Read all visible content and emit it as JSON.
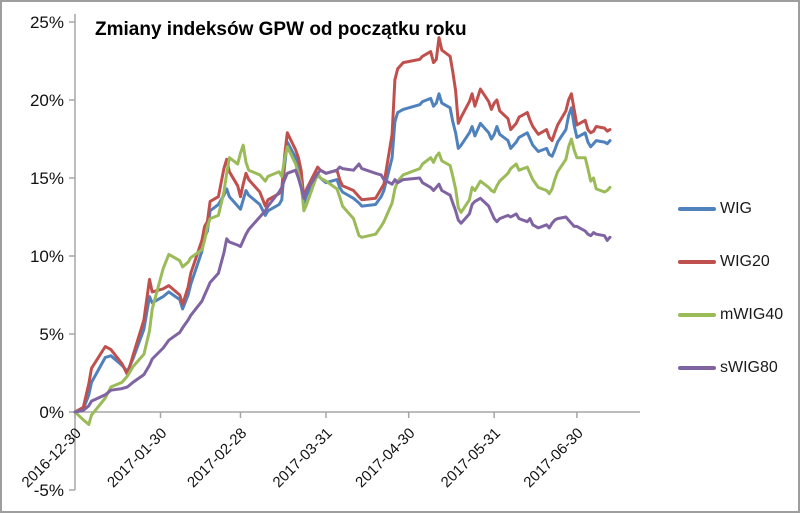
{
  "chart_data": {
    "type": "line",
    "title": "Zmiany indeksów GPW od początku roku",
    "value_unit": "%",
    "ylim": [
      -5,
      25
    ],
    "grid": false,
    "legend_position": "right",
    "axis_color": "#a6a6a6",
    "y_ticks": [
      {
        "label": "25%",
        "value": 25
      },
      {
        "label": "20%",
        "value": 20
      },
      {
        "label": "15%",
        "value": 15
      },
      {
        "label": "10%",
        "value": 10
      },
      {
        "label": "5%",
        "value": 5
      },
      {
        "label": "0%",
        "value": 0
      },
      {
        "label": "-5%",
        "value": -5
      }
    ],
    "x_tick_labels": [
      "2016-12-30",
      "2017-01-30",
      "2017-02-28",
      "2017-03-31",
      "2017-04-30",
      "2017-05-31",
      "2017-06-30"
    ],
    "x": [
      "2016-12-30",
      "2017-01-02",
      "2017-01-04",
      "2017-01-05",
      "2017-01-10",
      "2017-01-12",
      "2017-01-16",
      "2017-01-18",
      "2017-01-20",
      "2017-01-24",
      "2017-01-26",
      "2017-01-27",
      "2017-01-31",
      "2017-02-02",
      "2017-02-06",
      "2017-02-07",
      "2017-02-09",
      "2017-02-10",
      "2017-02-14",
      "2017-02-15",
      "2017-02-16",
      "2017-02-17",
      "2017-02-20",
      "2017-02-22",
      "2017-02-23",
      "2017-02-24",
      "2017-02-27",
      "2017-02-28",
      "2017-03-01",
      "2017-03-02",
      "2017-03-03",
      "2017-03-07",
      "2017-03-09",
      "2017-03-10",
      "2017-03-14",
      "2017-03-15",
      "2017-03-16",
      "2017-03-17",
      "2017-03-20",
      "2017-03-21",
      "2017-03-22",
      "2017-03-23",
      "2017-03-24",
      "2017-03-28",
      "2017-03-29",
      "2017-03-31",
      "2017-04-04",
      "2017-04-05",
      "2017-04-06",
      "2017-04-10",
      "2017-04-12",
      "2017-04-13",
      "2017-04-18",
      "2017-04-20",
      "2017-04-21",
      "2017-04-24",
      "2017-04-25",
      "2017-04-26",
      "2017-04-28",
      "2017-05-04",
      "2017-05-05",
      "2017-05-08",
      "2017-05-09",
      "2017-05-10",
      "2017-05-11",
      "2017-05-12",
      "2017-05-15",
      "2017-05-16",
      "2017-05-17",
      "2017-05-18",
      "2017-05-19",
      "2017-05-22",
      "2017-05-23",
      "2017-05-24",
      "2017-05-26",
      "2017-05-29",
      "2017-05-30",
      "2017-05-31",
      "2017-06-01",
      "2017-06-02",
      "2017-06-05",
      "2017-06-06",
      "2017-06-08",
      "2017-06-09",
      "2017-06-12",
      "2017-06-13",
      "2017-06-14",
      "2017-06-16",
      "2017-06-19",
      "2017-06-20",
      "2017-06-21",
      "2017-06-22",
      "2017-06-23",
      "2017-06-26",
      "2017-06-27",
      "2017-06-28",
      "2017-06-29",
      "2017-06-30",
      "2017-07-03",
      "2017-07-04",
      "2017-07-05",
      "2017-07-06",
      "2017-07-07",
      "2017-07-10",
      "2017-07-11",
      "2017-07-12"
    ],
    "series": [
      {
        "name": "WIG",
        "color": "#4F81BD",
        "values": [
          0.0,
          0.2,
          1.1,
          1.9,
          3.5,
          3.6,
          3.0,
          2.6,
          3.4,
          5.3,
          7.4,
          7.0,
          7.4,
          7.7,
          7.2,
          6.6,
          7.5,
          8.2,
          10.3,
          11.2,
          11.6,
          12.9,
          13.3,
          13.9,
          14.3,
          13.8,
          13.2,
          13.0,
          13.6,
          14.2,
          13.9,
          13.3,
          12.6,
          12.9,
          13.3,
          13.6,
          15.8,
          17.3,
          16.3,
          15.8,
          15.0,
          13.4,
          13.9,
          15.2,
          15.0,
          14.7,
          14.9,
          14.4,
          14.1,
          13.7,
          13.4,
          13.2,
          13.3,
          13.8,
          14.2,
          16.3,
          18.6,
          19.2,
          19.4,
          19.7,
          19.9,
          20.1,
          19.6,
          19.8,
          20.4,
          19.8,
          19.5,
          18.6,
          17.9,
          16.9,
          17.1,
          17.9,
          18.3,
          17.7,
          18.5,
          17.9,
          17.5,
          17.8,
          18.3,
          17.8,
          17.4,
          16.9,
          17.3,
          17.6,
          17.9,
          17.5,
          17.1,
          16.7,
          16.9,
          16.5,
          16.4,
          16.8,
          17.3,
          18.1,
          19.0,
          19.5,
          18.4,
          17.6,
          17.9,
          17.3,
          17.0,
          17.2,
          17.4,
          17.3,
          17.2,
          17.4
        ]
      },
      {
        "name": "WIG20",
        "color": "#C0504D",
        "values": [
          0.0,
          0.3,
          1.8,
          2.8,
          4.2,
          4.0,
          3.1,
          2.4,
          3.6,
          5.9,
          8.5,
          7.7,
          7.9,
          8.1,
          7.5,
          6.9,
          8.0,
          8.9,
          11.0,
          11.9,
          12.2,
          13.5,
          13.8,
          15.6,
          16.2,
          15.4,
          14.5,
          13.8,
          14.6,
          15.3,
          14.9,
          14.1,
          13.2,
          13.6,
          14.0,
          14.3,
          16.4,
          17.9,
          16.8,
          16.3,
          15.5,
          13.7,
          14.3,
          15.7,
          15.5,
          15.3,
          15.5,
          14.9,
          14.5,
          14.2,
          13.8,
          13.6,
          13.7,
          14.3,
          14.6,
          17.8,
          21.3,
          22.0,
          22.4,
          22.6,
          22.8,
          23.1,
          22.4,
          22.6,
          24.0,
          23.2,
          22.8,
          21.8,
          20.6,
          18.5,
          18.9,
          19.9,
          20.4,
          19.6,
          20.7,
          19.9,
          19.4,
          19.8,
          20.0,
          19.3,
          18.8,
          18.1,
          18.5,
          18.9,
          19.2,
          18.7,
          18.3,
          17.8,
          18.1,
          17.6,
          17.4,
          17.9,
          18.4,
          19.3,
          20.0,
          20.4,
          19.4,
          18.4,
          18.7,
          18.1,
          17.9,
          18.0,
          18.3,
          18.2,
          18.0,
          18.1
        ]
      },
      {
        "name": "mWIG40",
        "color": "#9BBB59",
        "values": [
          0.0,
          -0.5,
          -0.8,
          -0.2,
          0.9,
          1.6,
          1.9,
          2.3,
          2.9,
          3.7,
          5.2,
          6.6,
          9.2,
          10.1,
          9.7,
          9.3,
          9.6,
          9.9,
          10.4,
          11.0,
          11.9,
          12.4,
          12.6,
          14.1,
          15.3,
          16.3,
          15.9,
          16.6,
          17.1,
          16.0,
          15.5,
          15.2,
          14.8,
          15.1,
          15.4,
          15.1,
          16.2,
          17.0,
          15.9,
          15.3,
          14.6,
          12.9,
          13.3,
          15.3,
          15.0,
          14.8,
          14.3,
          13.8,
          13.2,
          12.4,
          11.3,
          11.2,
          11.4,
          11.9,
          12.2,
          13.4,
          14.3,
          14.8,
          15.2,
          15.6,
          15.9,
          16.3,
          16.0,
          16.4,
          16.6,
          16.1,
          15.8,
          15.1,
          14.3,
          13.1,
          12.8,
          13.6,
          14.4,
          14.2,
          14.8,
          14.4,
          14.2,
          14.1,
          14.5,
          14.8,
          15.3,
          15.6,
          15.9,
          15.5,
          15.7,
          15.3,
          14.9,
          14.4,
          14.2,
          14.0,
          14.3,
          14.9,
          15.4,
          16.2,
          17.0,
          17.5,
          16.8,
          16.3,
          16.3,
          15.6,
          14.8,
          15.0,
          14.3,
          14.1,
          14.2,
          14.4
        ]
      },
      {
        "name": "sWIG80",
        "color": "#8064A2",
        "values": [
          0.0,
          0.1,
          0.4,
          0.7,
          1.1,
          1.4,
          1.5,
          1.6,
          1.9,
          2.4,
          3.0,
          3.4,
          4.1,
          4.6,
          5.1,
          5.4,
          5.9,
          6.2,
          7.1,
          7.5,
          7.9,
          8.3,
          8.9,
          10.2,
          11.1,
          10.9,
          10.7,
          10.6,
          11.0,
          11.4,
          11.7,
          12.5,
          12.9,
          13.2,
          14.1,
          14.4,
          14.9,
          15.3,
          15.5,
          15.0,
          14.4,
          13.7,
          14.2,
          15.3,
          15.5,
          15.3,
          15.5,
          15.7,
          15.6,
          15.5,
          15.9,
          15.6,
          15.3,
          15.2,
          14.9,
          14.6,
          14.9,
          14.7,
          14.9,
          15.0,
          14.7,
          14.4,
          14.2,
          14.4,
          14.6,
          14.2,
          13.9,
          13.4,
          12.9,
          12.3,
          12.1,
          12.7,
          13.3,
          13.5,
          13.7,
          13.2,
          12.8,
          12.4,
          12.2,
          12.4,
          12.6,
          12.5,
          12.7,
          12.4,
          12.2,
          12.4,
          12.0,
          11.8,
          12.0,
          11.8,
          12.1,
          12.3,
          12.4,
          12.5,
          12.3,
          12.1,
          11.9,
          11.9,
          11.6,
          11.4,
          11.3,
          11.5,
          11.4,
          11.3,
          11.0,
          11.2
        ]
      }
    ]
  }
}
